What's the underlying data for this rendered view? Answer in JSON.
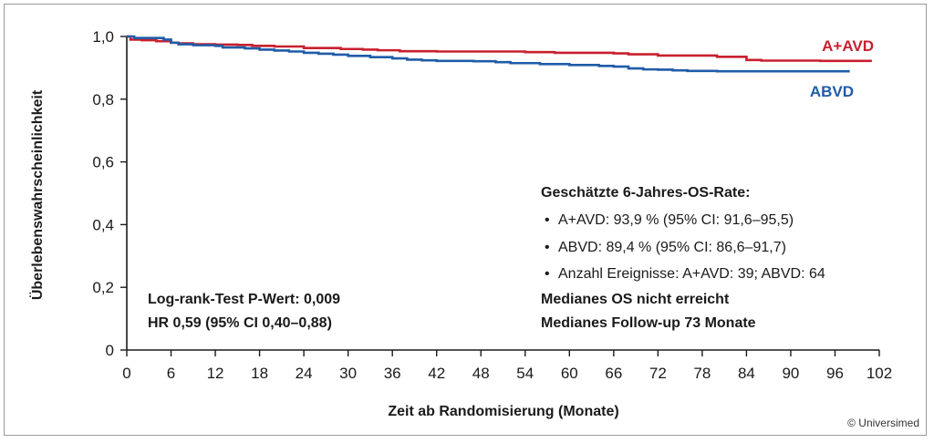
{
  "chart_data": {
    "type": "line",
    "xlabel": "Zeit ab Randomisierung (Monate)",
    "ylabel": "Überlebenswahrscheinlichkeit",
    "xlim": [
      0,
      102
    ],
    "ylim": [
      0,
      1.0
    ],
    "x_ticks": [
      0,
      6,
      12,
      18,
      24,
      30,
      36,
      42,
      48,
      54,
      60,
      66,
      72,
      78,
      84,
      90,
      96,
      102
    ],
    "x_tick_labels": [
      "0",
      "6",
      "12",
      "18",
      "24",
      "30",
      "36",
      "42",
      "48",
      "54",
      "60",
      "66",
      "72",
      "78",
      "84",
      "90",
      "96",
      "102"
    ],
    "y_ticks": [
      0,
      0.2,
      0.4,
      0.6,
      0.8,
      1.0
    ],
    "y_tick_labels": [
      "0",
      "0,2",
      "0,4",
      "0,6",
      "0,8",
      "1,0"
    ],
    "grid": false,
    "series": [
      {
        "name": "A+AVD",
        "color": "#c8202f",
        "x": [
          0,
          0.5,
          2,
          4,
          6,
          7,
          9,
          12,
          15,
          17,
          20,
          24,
          29,
          32,
          34,
          37,
          42,
          48,
          54,
          58,
          66,
          68,
          72,
          80,
          84,
          86,
          94,
          96,
          101
        ],
        "y": [
          1.0,
          0.99,
          0.988,
          0.985,
          0.98,
          0.978,
          0.975,
          0.974,
          0.973,
          0.97,
          0.968,
          0.963,
          0.96,
          0.958,
          0.956,
          0.953,
          0.952,
          0.952,
          0.95,
          0.948,
          0.946,
          0.943,
          0.939,
          0.935,
          0.925,
          0.923,
          0.922,
          0.922,
          0.922
        ]
      },
      {
        "name": "ABVD",
        "color": "#1f5ca8",
        "x": [
          0,
          1,
          3,
          5,
          6,
          7,
          9,
          12,
          13,
          16,
          18,
          20,
          22,
          24,
          26,
          28,
          30,
          33,
          36,
          38,
          40,
          42,
          47,
          50,
          52,
          56,
          60,
          64,
          66,
          68,
          70,
          72,
          74,
          76,
          80,
          88,
          98
        ],
        "y": [
          1.0,
          0.995,
          0.995,
          0.99,
          0.98,
          0.975,
          0.972,
          0.97,
          0.965,
          0.962,
          0.958,
          0.955,
          0.952,
          0.948,
          0.945,
          0.942,
          0.938,
          0.934,
          0.93,
          0.926,
          0.924,
          0.922,
          0.921,
          0.918,
          0.915,
          0.912,
          0.909,
          0.906,
          0.904,
          0.898,
          0.895,
          0.894,
          0.892,
          0.89,
          0.889,
          0.889,
          0.889
        ]
      }
    ],
    "series_labels": {
      "aavd": "A+AVD",
      "abvd": "ABVD"
    },
    "annotation_left": {
      "line1": "Log-rank-Test P-Wert: 0,009",
      "line2": "HR 0,59 (95% CI 0,40–0,88)"
    },
    "annotation_right": {
      "title": "Geschätzte 6-Jahres-OS-Rate:",
      "bullets": [
        "A+AVD: 93,9 % (95% CI: 91,6–95,5)",
        "ABVD: 89,4 % (95% CI: 86,6–91,7)",
        "Anzahl Ereignisse: A+AVD: 39; ABVD: 64"
      ],
      "bullet_char": "•",
      "line_median_os": "Medianes OS nicht erreicht",
      "line_followup": "Medianes Follow-up 73 Monate"
    }
  },
  "credit": "© Universimed"
}
